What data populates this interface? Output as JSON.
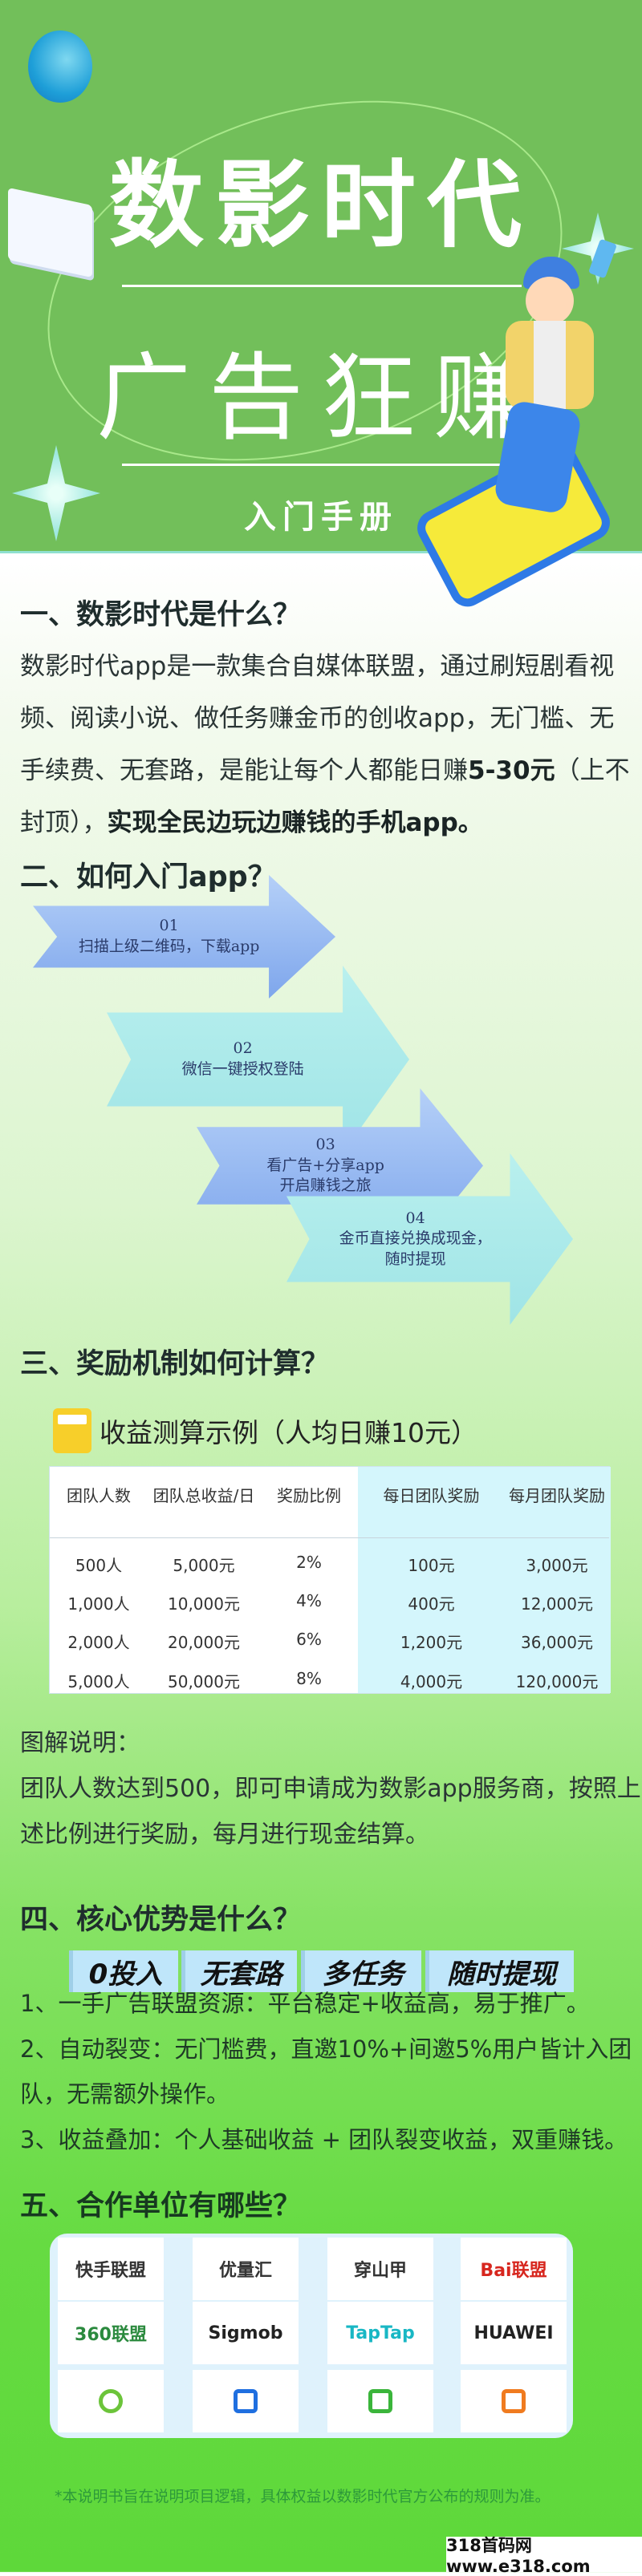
{
  "hero": {
    "title": "数影时代",
    "subtitle": "广告狂赚",
    "tag": "入门手册",
    "bg_color": "#72bf5a"
  },
  "s1": {
    "heading": "一、数影时代是什么？",
    "lines": [
      "数影时代app是一款集合自媒体联盟，通过刷短剧看视",
      "频、阅读小说、做任务赚金币的创收app，无门槛、无",
      "手续费、无套路，是能让每个人都能日赚"
    ],
    "line3_bold": "5-30元",
    "line3_tail": "（上不",
    "line4_normal": "封顶），",
    "line4_bold": "实现全民边玩边赚钱的手机app。"
  },
  "s2": {
    "heading": "二、如何入门app？",
    "steps": [
      {
        "num": "01",
        "text": "扫描上级二维码，下载app"
      },
      {
        "num": "02",
        "text": "微信一键授权登陆"
      },
      {
        "num": "03",
        "text": "看广告+分享app",
        "text2": "开启赚钱之旅"
      },
      {
        "num": "04",
        "text": "金币直接兑换成现金，",
        "text2": "随时提现"
      }
    ]
  },
  "s3": {
    "heading": "三、奖励机制如何计算？",
    "table_title": "收益测算示例（人均日赚10元）",
    "columns": [
      "团队人数",
      "团队总收益/日",
      "奖励比例",
      "每日团队奖励",
      "每月团队奖励"
    ],
    "rows": [
      [
        "500人",
        "5,000元",
        "2%",
        "100元",
        "3,000元"
      ],
      [
        "1,000人",
        "10,000元",
        "4%",
        "400元",
        "12,000元"
      ],
      [
        "2,000人",
        "20,000元",
        "6%",
        "1,200元",
        "36,000元"
      ],
      [
        "5,000人",
        "50,000元",
        "8%",
        "4,000元",
        "120,000元"
      ]
    ],
    "note_label": "图解说明：",
    "note_lines": [
      "团队人数达到500，即可申请成为数影app服务商，按照上",
      "述比例进行奖励，每月进行现金结算。"
    ]
  },
  "s4": {
    "heading": "四、核心优势是什么？",
    "badges": [
      "0投入",
      "无套路",
      "多任务",
      "随时提现"
    ],
    "items": [
      "1、一手广告联盟资源：平台稳定+收益高，易于推广。",
      "2、自动裂变：无门槛费，直邀10%+间邀5%用户皆计入团",
      "队，无需额外操作。",
      "3、收益叠加：个人基础收益 + 团队裂变收益，双重赚钱。"
    ]
  },
  "s5": {
    "heading": "五、合作单位有哪些？",
    "partners": [
      {
        "name": "快手联盟",
        "color": "#333"
      },
      {
        "name": "优量汇",
        "color": "#333"
      },
      {
        "name": "穿山甲",
        "color": "#333"
      },
      {
        "name": "Bai联盟",
        "color": "#d7261e"
      },
      {
        "name": "360联盟",
        "color": "#2b8a3e"
      },
      {
        "name": "Sigmob",
        "color": "#222"
      },
      {
        "name": "TapTap",
        "color": "#18b7c4"
      },
      {
        "name": "HUAWEI",
        "color": "#222"
      }
    ],
    "icons": [
      "lightning-logo-icon",
      "m-logo-icon",
      "leaf-shield-logo-icon",
      "xw-logo-icon"
    ],
    "footnote": "*本说明书旨在说明项目逻辑，具体权益以数影时代官方公布的规则为准。"
  },
  "watermark": "318首码网 www.e318.com"
}
